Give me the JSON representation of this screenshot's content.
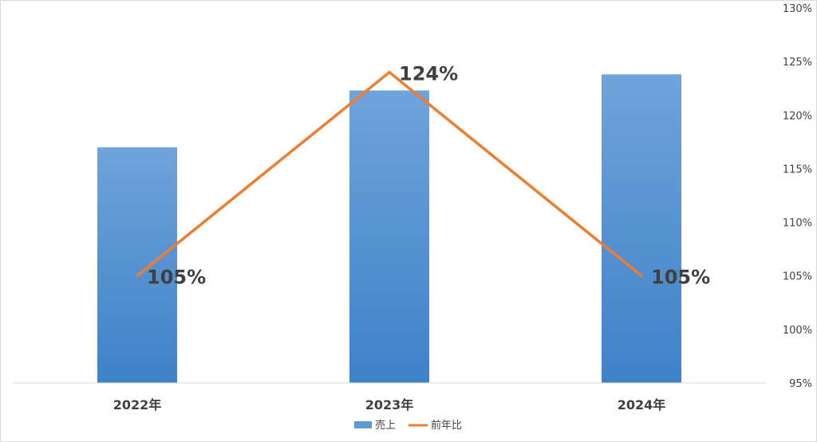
{
  "chart_data": {
    "type": "bar",
    "categories": [
      "2022年",
      "2023年",
      "2024年"
    ],
    "series": [
      {
        "name": "売上",
        "type": "bar",
        "axis": "unlabeled-primary",
        "color": "#5b9bd5",
        "values": [
          117,
          122.3,
          123.8
        ]
      },
      {
        "name": "前年比",
        "type": "line",
        "axis": "right",
        "color": "#ed7d31",
        "values": [
          105,
          124,
          105
        ],
        "data_labels": [
          "105%",
          "124%",
          "105%"
        ]
      }
    ],
    "y2": {
      "ticks": [
        "130%",
        "125%",
        "120%",
        "115%",
        "110%",
        "105%",
        "100%",
        "95%"
      ],
      "ylim": [
        95,
        130
      ],
      "unit": "%"
    },
    "grid": false,
    "legend": "bottom",
    "title": "",
    "xlabel": "",
    "ylabel": ""
  }
}
